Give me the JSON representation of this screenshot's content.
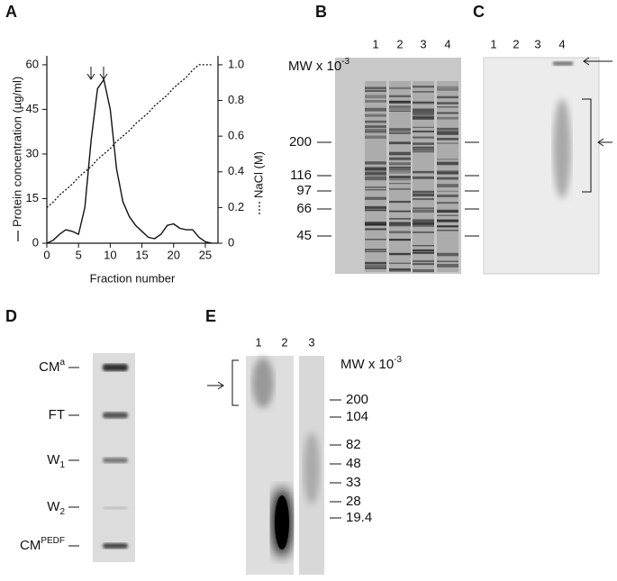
{
  "chart_data": {
    "type": "line",
    "panel_label": "A",
    "xlabel": "Fraction number",
    "ylabel": "Protein concentration (µg/ml)",
    "y2label": "NaCl (M)",
    "x": [
      0,
      1,
      2,
      3,
      4,
      5,
      6,
      7,
      8,
      9,
      10,
      11,
      12,
      13,
      14,
      15,
      16,
      17,
      18,
      19,
      20,
      21,
      22,
      23,
      24,
      25,
      26
    ],
    "series": [
      {
        "color": "#111111",
        "style": "solid",
        "values": [
          0,
          1,
          3,
          4.5,
          4,
          3,
          12,
          35,
          52,
          55,
          45,
          25,
          14,
          9,
          6,
          4,
          2,
          1.5,
          3,
          6,
          6.5,
          5,
          4.5,
          4.5,
          2,
          0.5,
          0
        ]
      },
      {
        "color": "#111111",
        "style": "dotted",
        "axis": "y2",
        "values": [
          0.2,
          0.23,
          0.27,
          0.3,
          0.33,
          0.37,
          0.4,
          0.43,
          0.47,
          0.5,
          0.53,
          0.57,
          0.6,
          0.63,
          0.67,
          0.7,
          0.73,
          0.77,
          0.8,
          0.83,
          0.87,
          0.9,
          0.93,
          0.97,
          1.0,
          1.0,
          1.0
        ]
      }
    ],
    "xlim": [
      0,
      27
    ],
    "xticks": [
      0,
      5,
      10,
      15,
      20,
      25
    ],
    "ylim": [
      0,
      63
    ],
    "yticks": [
      0,
      15,
      30,
      45,
      60
    ],
    "y2lim": [
      0,
      1.05
    ],
    "y2ticks": [
      0,
      0.2,
      0.4,
      0.6,
      0.8,
      {
        "value": 1,
        "label": "1.0"
      }
    ]
  },
  "gels": {
    "B": {
      "label": "B",
      "lanes": [
        "1",
        "2",
        "3",
        "4"
      ],
      "mw_title": "MW x 10",
      "mw_exp": "-3",
      "markers": [
        "200",
        "116",
        "97",
        "66",
        "45"
      ]
    },
    "C": {
      "label": "C",
      "lanes": [
        "1",
        "2",
        "3",
        "4"
      ]
    },
    "D": {
      "label": "D",
      "rows": [
        {
          "text": "CM",
          "sup": "a"
        },
        {
          "text": "FT"
        },
        {
          "text": "W",
          "sub": "1"
        },
        {
          "text": "W",
          "sub": "2"
        },
        {
          "text": "CM",
          "sup": "PEDF"
        }
      ]
    },
    "E": {
      "label": "E",
      "lanes": [
        "1",
        "2",
        "3"
      ],
      "mw_title": "MW x 10",
      "mw_exp": "-3",
      "markers": [
        "200",
        "104",
        "82",
        "48",
        "33",
        "28",
        "19.4"
      ]
    }
  }
}
